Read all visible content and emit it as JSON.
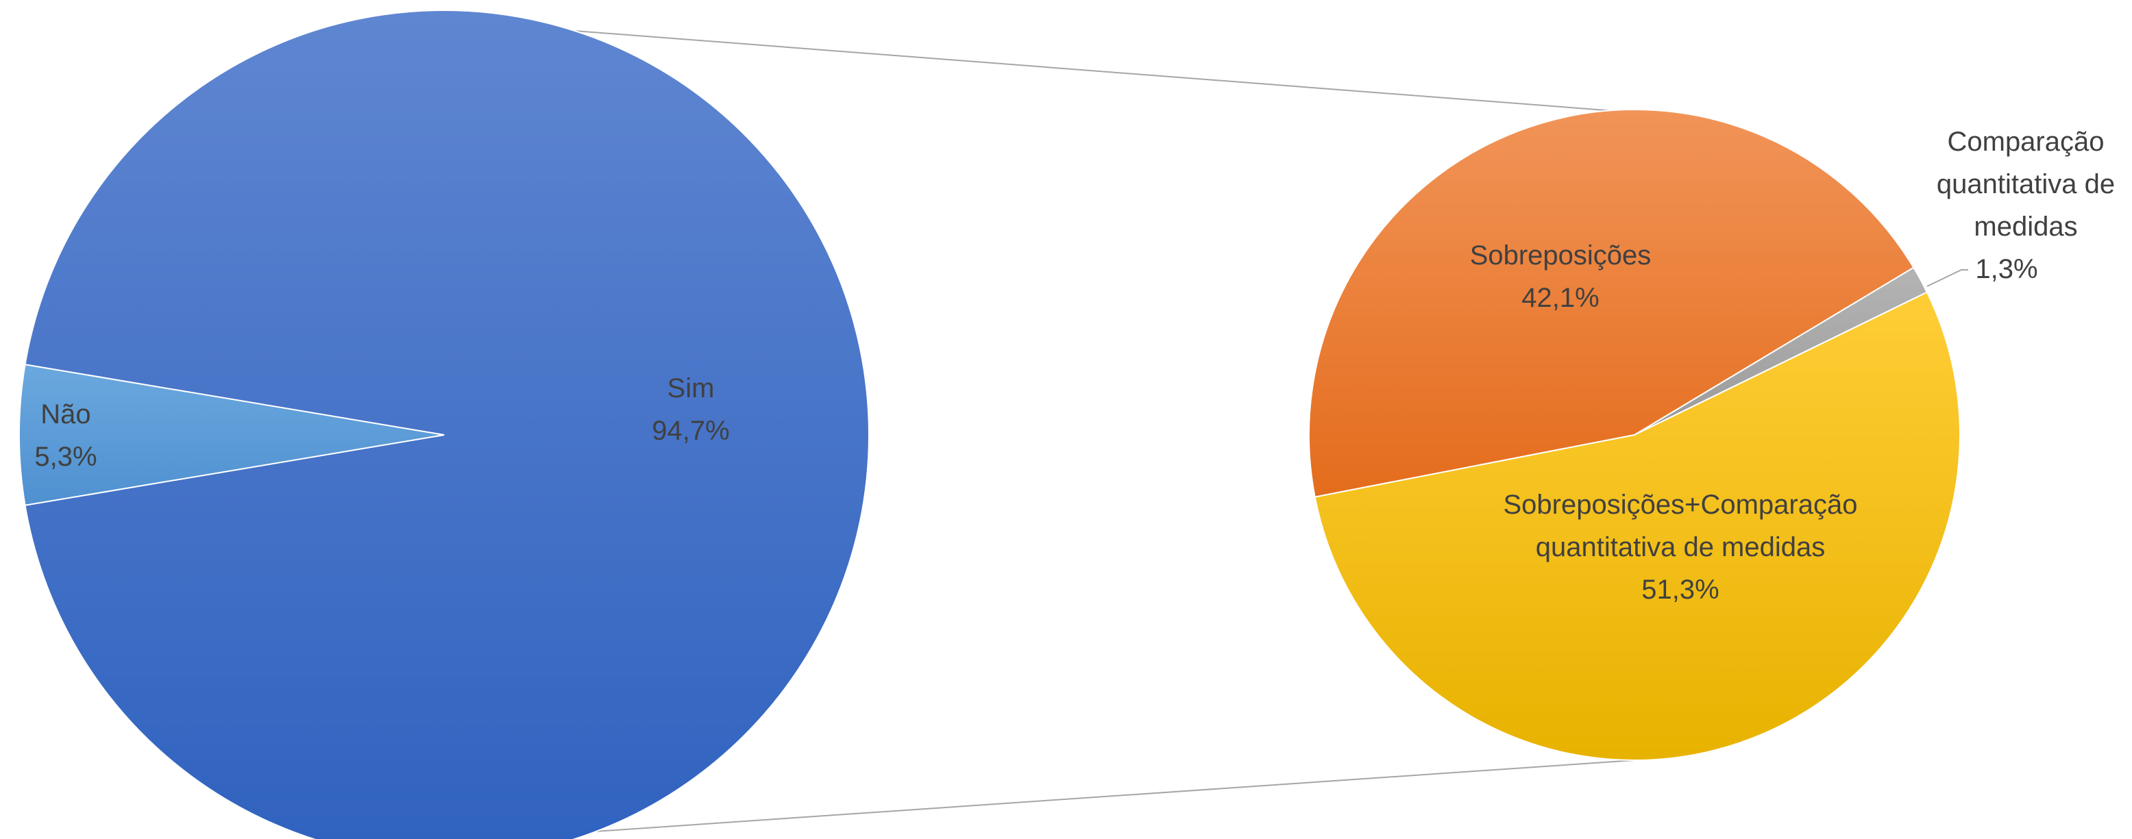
{
  "chart_data": [
    {
      "type": "pie",
      "title": "",
      "slices": [
        {
          "name": "Não",
          "percent": 5.3,
          "label": "5,3%"
        },
        {
          "name": "Sim",
          "percent": 94.7,
          "label": "94,7%"
        }
      ]
    },
    {
      "type": "pie",
      "title": "",
      "slices": [
        {
          "name": "Sobreposições",
          "percent": 42.1,
          "label": "42,1%"
        },
        {
          "name": "Comparação quantitativa de medidas",
          "name_lines": [
            "Comparação",
            "quantitativa de",
            "medidas"
          ],
          "percent": 1.3,
          "label": "1,3%"
        },
        {
          "name": "Sobreposições+Comparação quantitativa de medidas",
          "name_lines": [
            "Sobreposições+Comparação",
            "quantitativa de medidas"
          ],
          "percent": 51.3,
          "label": "51,3%"
        }
      ]
    }
  ],
  "colors": {
    "sim": "#3d6cc6",
    "nao": "#5b9bd5",
    "sobreposicoes": "#ed7d31",
    "comparacao": "#a5a5a5",
    "sobreposicoes_comparacao": "#ffc000",
    "connector": "#a6a6a6",
    "label": "#404040"
  }
}
